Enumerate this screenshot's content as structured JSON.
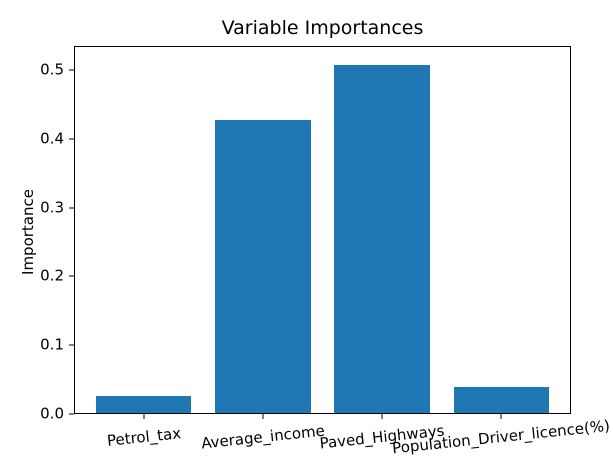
{
  "chart_data": {
    "type": "bar",
    "title": "Variable Importances",
    "xlabel": "",
    "ylabel": "Importance",
    "categories": [
      "Petrol_tax",
      "Average_income",
      "Paved_Highways",
      "Population_Driver_licence(%)"
    ],
    "values": [
      0.026,
      0.427,
      0.507,
      0.039
    ],
    "yticks": [
      "0.0",
      "0.1",
      "0.2",
      "0.3",
      "0.4",
      "0.5"
    ],
    "ylim": [
      0,
      0.535
    ],
    "xlim": [
      -0.585,
      3.585
    ],
    "bar_width_ratio": 0.8,
    "bar_color": "#1f77b4",
    "axis_color": "#000000",
    "grid": false,
    "legend": null,
    "x_label_rotation_deg": 6
  }
}
